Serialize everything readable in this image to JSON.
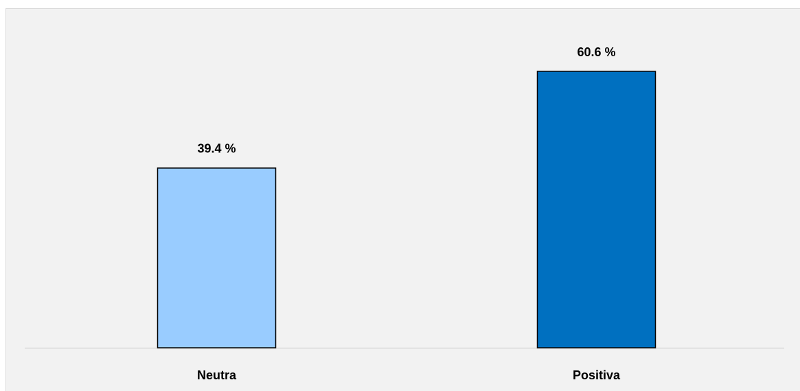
{
  "chart_data": {
    "type": "bar",
    "categories": [
      "Neutra",
      "Positiva"
    ],
    "values": [
      39.4,
      60.6
    ],
    "value_labels": [
      "39.4 %",
      "60.6 %"
    ],
    "colors": [
      "#99ccff",
      "#0070c0"
    ]
  }
}
